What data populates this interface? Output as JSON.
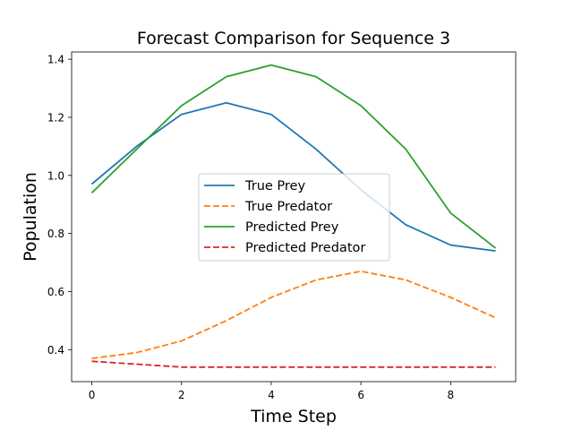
{
  "chart_data": {
    "type": "line",
    "title": "Forecast Comparison for Sequence 3",
    "xlabel": "Time Step",
    "ylabel": "Population",
    "x": [
      0,
      1,
      2,
      3,
      4,
      5,
      6,
      7,
      8,
      9
    ],
    "xlim": [
      -0.45,
      9.45
    ],
    "ylim": [
      0.29,
      1.425
    ],
    "xticks": [
      0,
      2,
      4,
      6,
      8
    ],
    "xtick_labels": [
      "0",
      "2",
      "4",
      "6",
      "8"
    ],
    "yticks": [
      0.4,
      0.6,
      0.8,
      1.0,
      1.2,
      1.4
    ],
    "ytick_labels": [
      "0.4",
      "0.6",
      "0.8",
      "1.0",
      "1.2",
      "1.4"
    ],
    "grid": false,
    "legend_position": "center",
    "series": [
      {
        "name": "True Prey",
        "color": "#1f77b4",
        "style": "solid",
        "values": [
          0.97,
          1.1,
          1.21,
          1.25,
          1.21,
          1.09,
          0.95,
          0.83,
          0.76,
          0.74
        ]
      },
      {
        "name": "True Predator",
        "color": "#ff7f0e",
        "style": "dashed",
        "values": [
          0.37,
          0.39,
          0.43,
          0.5,
          0.58,
          0.64,
          0.67,
          0.64,
          0.58,
          0.51
        ]
      },
      {
        "name": "Predicted Prey",
        "color": "#2ca02c",
        "style": "solid",
        "values": [
          0.94,
          1.09,
          1.24,
          1.34,
          1.38,
          1.34,
          1.24,
          1.09,
          0.87,
          0.75
        ]
      },
      {
        "name": "Predicted Predator",
        "color": "#d62728",
        "style": "dashed",
        "values": [
          0.36,
          0.35,
          0.34,
          0.34,
          0.34,
          0.34,
          0.34,
          0.34,
          0.34,
          0.34
        ]
      }
    ]
  }
}
